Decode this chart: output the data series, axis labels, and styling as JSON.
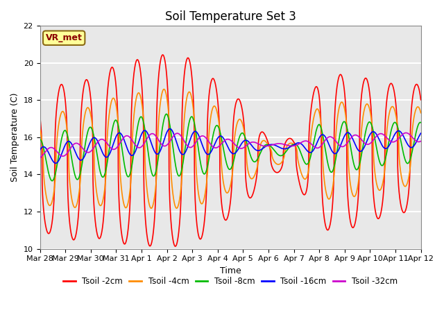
{
  "title": "Soil Temperature Set 3",
  "xlabel": "Time",
  "ylabel": "Soil Temperature (C)",
  "ylim": [
    10,
    22
  ],
  "background_color": "#e8e8e8",
  "plot_bg_color": "#e8e8e8",
  "grid_color": "white",
  "annotation_text": "VR_met",
  "annotation_box_color": "#ffff99",
  "annotation_text_color": "#8b0000",
  "annotation_border_color": "#8b6914",
  "x_tick_labels": [
    "Mar 28",
    "Mar 29",
    "Mar 30",
    "Mar 31",
    "Apr 1",
    "Apr 2",
    "Apr 3",
    "Apr 4",
    "Apr 5",
    "Apr 6",
    "Apr 7",
    "Apr 8",
    "Apr 9",
    "Apr 10",
    "Apr 11",
    "Apr 12"
  ],
  "legend_labels": [
    "Tsoil -2cm",
    "Tsoil -4cm",
    "Tsoil -8cm",
    "Tsoil -16cm",
    "Tsoil -32cm"
  ],
  "legend_colors": [
    "#ff0000",
    "#ff8c00",
    "#00bb00",
    "#0000ff",
    "#cc00cc"
  ],
  "line_widths": [
    1.2,
    1.2,
    1.2,
    1.2,
    1.2
  ],
  "title_fontsize": 12,
  "axis_fontsize": 9,
  "tick_fontsize": 8,
  "figsize": [
    6.4,
    4.8
  ],
  "dpi": 100,
  "yticks": [
    10,
    12,
    14,
    16,
    18,
    20,
    22
  ]
}
